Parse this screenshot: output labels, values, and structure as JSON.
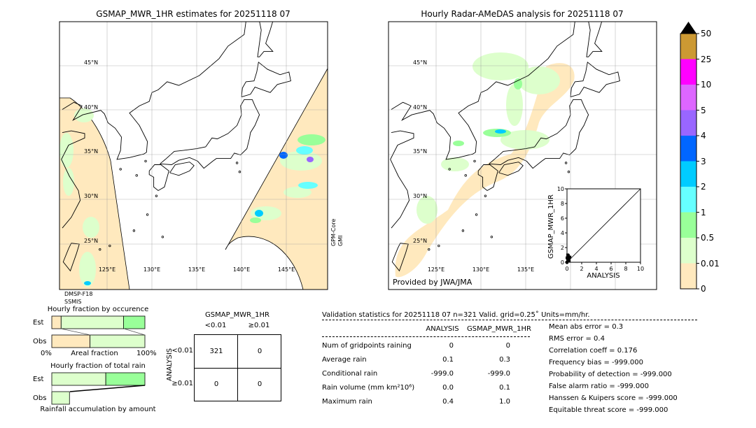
{
  "left_map": {
    "title": "GSMAP_MWR_1HR estimates for 20251118 07",
    "lat_labels": [
      "45°N",
      "40°N",
      "35°N",
      "30°N",
      "25°N"
    ],
    "lon_labels": [
      "125°E",
      "130°E",
      "135°E",
      "140°E",
      "145°E"
    ],
    "sensor_left": [
      "DMSP-F18",
      "SSMIS"
    ],
    "sensor_right": [
      "GPM-Core",
      "GMI"
    ]
  },
  "right_map": {
    "title": "Hourly Radar-AMeDAS analysis for 20251118 07",
    "lat_labels": [
      "45°N",
      "40°N",
      "35°N",
      "30°N",
      "25°N"
    ],
    "lon_labels": [
      "125°E",
      "130°E",
      "135°E"
    ],
    "credit": "Provided by JWA/JMA"
  },
  "chart_data": [
    {
      "type": "scatter",
      "xlabel": "ANALYSIS",
      "ylabel": "GSMAP_MWR_1HR",
      "xlim": [
        0,
        10
      ],
      "ylim": [
        0,
        10
      ],
      "ticks": [
        "0",
        "2",
        "4",
        "6",
        "8",
        "10"
      ],
      "points": [
        [
          0.0,
          0.0
        ],
        [
          0.1,
          0.2
        ],
        [
          0.1,
          0.5
        ],
        [
          0.2,
          0.8
        ],
        [
          0.1,
          1.0
        ],
        [
          0.3,
          0.6
        ],
        [
          0.2,
          0.3
        ],
        [
          0.4,
          0.7
        ],
        [
          0.3,
          0.2
        ],
        [
          0.0,
          0.6
        ],
        [
          0.2,
          0.9
        ]
      ],
      "diagonal": true
    },
    {
      "type": "bar",
      "title": "Hourly fraction by occurence",
      "categories": [
        "Est",
        "Obs"
      ],
      "xlabel": "Areal fraction",
      "x_tick_labels": [
        "0%",
        "100%"
      ],
      "series": [
        {
          "values_pct": [
            {
              "class": "0",
              "pct": 10,
              "color": "#ffe9be"
            },
            {
              "class": "0.01-0.5",
              "pct": 67,
              "color": "#ddffcc"
            },
            {
              "class": "0.5-1",
              "pct": 23,
              "color": "#99ff99"
            }
          ]
        },
        {
          "values_pct": [
            {
              "class": "0",
              "pct": 41,
              "color": "#ffe9be"
            },
            {
              "class": "0.01-0.5",
              "pct": 59,
              "color": "#ddffcc"
            }
          ]
        }
      ]
    },
    {
      "type": "bar",
      "title": "Hourly fraction of total rain",
      "categories": [
        "Est",
        "Obs"
      ],
      "xlabel": "Rainfall accumulation by amount",
      "series": [
        {
          "values_pct": [
            {
              "class": "0.01-0.5",
              "pct": 58,
              "color": "#ddffcc"
            },
            {
              "class": "0.5-1",
              "pct": 42,
              "color": "#99ff99"
            }
          ]
        },
        {
          "values_pct": [
            {
              "class": "0.01-0.5",
              "pct": 19,
              "color": "#ddffcc"
            }
          ]
        }
      ]
    }
  ],
  "colorbar": {
    "labels": [
      "50",
      "25",
      "10",
      "5",
      "4",
      "3",
      "2",
      "1",
      "0.5",
      "0.01",
      "0"
    ],
    "colors": [
      "#cc9933",
      "#ff00ff",
      "#dd66ff",
      "#9966ff",
      "#0066ff",
      "#00ccff",
      "#66ffff",
      "#99ff99",
      "#ddffcc",
      "#ffe9be"
    ],
    "extend_color": "#000000"
  },
  "contingency": {
    "title": "GSMAP_MWR_1HR",
    "col_labels": [
      "<0.01",
      "≥0.01"
    ],
    "row_axis": "ANALYSIS",
    "row_labels": [
      "<0.01",
      "≥0.01"
    ],
    "cells": [
      [
        "321",
        "0"
      ],
      [
        "0",
        "0"
      ]
    ]
  },
  "stats": {
    "title": "Validation statistics for 20251118 07  n=321 Valid. grid=0.25˚ Units=mm/hr.",
    "col_headers": [
      "ANALYSIS",
      "GSMAP_MWR_1HR"
    ],
    "rows": [
      {
        "label": "Num of gridpoints raining",
        "a": "0",
        "g": "0"
      },
      {
        "label": "Average rain",
        "a": "0.1",
        "g": "0.3"
      },
      {
        "label": "Conditional rain",
        "a": "-999.0",
        "g": "-999.0"
      },
      {
        "label": "Rain volume (mm km²10⁶)",
        "a": "0.0",
        "g": "0.1"
      },
      {
        "label": "Maximum rain",
        "a": "0.4",
        "g": "1.0"
      }
    ],
    "scores": [
      "Mean abs error =    0.3",
      "RMS error =    0.4",
      "Correlation coeff =  0.176",
      "Frequency bias = -999.000",
      "Probability of detection = -999.000",
      "False alarm ratio = -999.000",
      "Hanssen & Kuipers score = -999.000",
      "Equitable threat score = -999.000"
    ]
  }
}
